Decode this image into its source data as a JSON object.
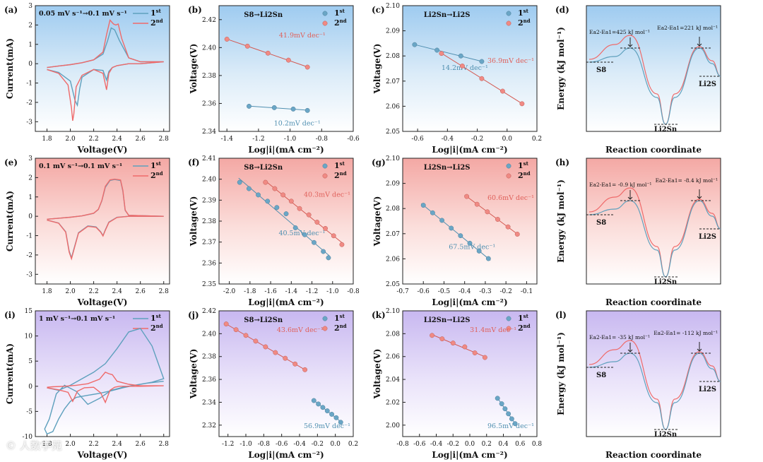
{
  "colors": {
    "first": "#5ea0bd",
    "second": "#ef6a6a",
    "mark1": "#6aa6c6",
    "mark2": "#f08a84"
  },
  "watermark": "© 人数学苑",
  "chart_data": [
    {
      "id": "a",
      "type": "line",
      "label": "(a)",
      "title": "0.05 mV s⁻¹→0.1 mV s⁻¹",
      "xlabel": "Voltage(V)",
      "ylabel": "Current(mA)",
      "xlim": [
        1.7,
        2.85
      ],
      "ylim": [
        -3.5,
        3
      ],
      "xticks": [
        1.8,
        2.0,
        2.2,
        2.4,
        2.6,
        2.8
      ],
      "yticks": [
        -3,
        -2,
        -1,
        0,
        1,
        2,
        3
      ],
      "bg": "blue",
      "legend": [
        "1st",
        "2nd"
      ],
      "series": [
        {
          "name": "1st",
          "x": [
            1.8,
            1.9,
            2.0,
            2.04,
            2.06,
            2.08,
            2.1,
            2.2,
            2.28,
            2.31,
            2.33,
            2.36,
            2.4,
            2.5,
            2.6,
            2.8,
            2.6,
            2.5,
            2.42,
            2.38,
            2.35,
            2.32,
            2.28,
            2.2,
            2.1,
            2.0,
            1.9,
            1.8
          ],
          "y": [
            -0.3,
            -0.45,
            -0.9,
            -1.9,
            -2.15,
            -1.3,
            -0.7,
            -0.3,
            -0.35,
            -0.85,
            -0.4,
            -0.2,
            -0.1,
            0,
            0,
            0.1,
            0.1,
            0.3,
            1.2,
            1.75,
            1.85,
            1.2,
            0.5,
            0.2,
            0.05,
            -0.05,
            -0.12,
            -0.2
          ]
        },
        {
          "name": "2nd",
          "x": [
            1.8,
            1.9,
            1.98,
            2.01,
            2.02,
            2.03,
            2.05,
            2.1,
            2.2,
            2.28,
            2.31,
            2.33,
            2.36,
            2.4,
            2.5,
            2.6,
            2.8,
            2.6,
            2.5,
            2.44,
            2.41,
            2.39,
            2.37,
            2.34,
            2.31,
            2.28,
            2.2,
            2.1,
            2.0,
            1.9,
            1.8
          ],
          "y": [
            -0.3,
            -0.5,
            -1.1,
            -2.3,
            -2.95,
            -2.6,
            -1.2,
            -0.6,
            -0.3,
            -0.5,
            -1.35,
            -0.5,
            -0.2,
            -0.1,
            0,
            0,
            0.1,
            0.1,
            0.3,
            1.3,
            2.05,
            2.0,
            2.05,
            2.25,
            1.5,
            0.6,
            0.2,
            0.05,
            -0.05,
            -0.12,
            -0.2
          ]
        }
      ]
    },
    {
      "id": "b",
      "type": "scatter",
      "label": "(b)",
      "title": "S8→Li2Sn",
      "xlabel": "Log|i|(mA cm⁻²)",
      "ylabel": "Voltage(V)",
      "xlim": [
        -1.45,
        -0.6
      ],
      "ylim": [
        2.34,
        2.43
      ],
      "xticks": [
        -1.4,
        -1.2,
        -1.0,
        -0.8,
        -0.6
      ],
      "yticks": [
        2.34,
        2.36,
        2.38,
        2.4,
        2.42
      ],
      "bg": "blue",
      "legend": [
        "1st",
        "2nd"
      ],
      "series": [
        {
          "name": "1st",
          "x": [
            -1.26,
            -1.1,
            -0.98,
            -0.89
          ],
          "y": [
            2.358,
            2.357,
            2.356,
            2.355
          ],
          "annotation": "10.2mV dec⁻¹"
        },
        {
          "name": "2nd",
          "x": [
            -1.4,
            -1.27,
            -1.14,
            -1.01,
            -0.89
          ],
          "y": [
            2.406,
            2.401,
            2.396,
            2.391,
            2.386
          ],
          "annotation": "41.9mV dec⁻¹"
        }
      ]
    },
    {
      "id": "c",
      "type": "scatter",
      "label": "(c)",
      "title": "Li2Sn→Li2S",
      "xlabel": "Log|i|(mA cm⁻²)",
      "ylabel": "Voltage(V)",
      "xlim": [
        -0.7,
        0.2
      ],
      "ylim": [
        2.05,
        2.1
      ],
      "xticks": [
        -0.6,
        -0.4,
        -0.2,
        0.0,
        0.2
      ],
      "yticks": [
        2.05,
        2.06,
        2.07,
        2.08,
        2.09,
        2.1
      ],
      "bg": "blue",
      "legend": [
        "1st",
        "2nd"
      ],
      "series": [
        {
          "name": "1st",
          "x": [
            -0.62,
            -0.47,
            -0.31,
            -0.17
          ],
          "y": [
            2.0845,
            2.0823,
            2.08,
            2.0778
          ],
          "annotation": "14.2mV dec⁻¹"
        },
        {
          "name": "2nd",
          "x": [
            -0.44,
            -0.3,
            -0.17,
            -0.03,
            0.1
          ],
          "y": [
            2.081,
            2.076,
            2.071,
            2.066,
            2.061
          ],
          "annotation": "36.9mV dec⁻¹"
        }
      ]
    },
    {
      "id": "d",
      "type": "energy",
      "label": "(d)",
      "xlabel": "Reaction coordinate",
      "ylabel": "Energy (kJ mol⁻¹)",
      "bg": "blue",
      "labels": [
        "S8",
        "Li2Sn",
        "Li2S"
      ],
      "annotations": [
        "Ea2-Ea1=425 kJ mol⁻¹",
        "Ea2-Ea1=221 kJ mol⁻¹"
      ]
    },
    {
      "id": "e",
      "type": "line",
      "label": "(e)",
      "title": "0.1 mV s⁻¹→0.1 mV s⁻¹",
      "xlabel": "Voltage(V)",
      "ylabel": "Current(mA)",
      "xlim": [
        1.7,
        2.85
      ],
      "ylim": [
        -3.5,
        3
      ],
      "xticks": [
        1.8,
        2.0,
        2.2,
        2.4,
        2.6,
        2.8
      ],
      "yticks": [
        -3,
        -2,
        -1,
        0,
        1,
        2,
        3
      ],
      "bg": "red",
      "legend": [
        "1st",
        "2nd"
      ],
      "series": [
        {
          "name": "1st",
          "x": [
            1.8,
            1.9,
            1.96,
            1.99,
            2.01,
            2.03,
            2.07,
            2.15,
            2.22,
            2.26,
            2.28,
            2.3,
            2.33,
            2.4,
            2.5,
            2.8,
            2.5,
            2.47,
            2.45,
            2.43,
            2.38,
            2.34,
            2.3,
            2.27,
            2.24,
            2.2,
            2.1,
            2.0,
            1.9,
            1.8
          ],
          "y": [
            -0.2,
            -0.35,
            -0.8,
            -1.8,
            -2.15,
            -1.7,
            -0.85,
            -0.5,
            -0.55,
            -0.8,
            -1.0,
            -0.7,
            -0.3,
            -0.05,
            0,
            0,
            0.05,
            0.3,
            1.3,
            1.85,
            1.9,
            1.85,
            1.5,
            0.8,
            0.35,
            0.15,
            0.02,
            -0.05,
            -0.1,
            -0.15
          ]
        },
        {
          "name": "2nd",
          "x": [
            1.8,
            1.9,
            1.96,
            1.99,
            2.01,
            2.03,
            2.07,
            2.15,
            2.22,
            2.26,
            2.28,
            2.3,
            2.33,
            2.4,
            2.5,
            2.8,
            2.5,
            2.47,
            2.45,
            2.43,
            2.38,
            2.34,
            2.3,
            2.27,
            2.24,
            2.2,
            2.1,
            2.0,
            1.9,
            1.8
          ],
          "y": [
            -0.2,
            -0.36,
            -0.82,
            -1.85,
            -2.2,
            -1.75,
            -0.87,
            -0.52,
            -0.57,
            -0.82,
            -1.02,
            -0.72,
            -0.32,
            -0.06,
            0,
            0,
            0.05,
            0.32,
            1.35,
            1.88,
            1.92,
            1.88,
            1.55,
            0.82,
            0.36,
            0.16,
            0.02,
            -0.05,
            -0.1,
            -0.15
          ]
        }
      ]
    },
    {
      "id": "f",
      "type": "scatter",
      "label": "(f)",
      "title": "S8→Li2Sn",
      "xlabel": "Log|i|(mA cm⁻²)",
      "ylabel": "Voltage(V)",
      "xlim": [
        -2.1,
        -0.8
      ],
      "ylim": [
        2.35,
        2.41
      ],
      "xticks": [
        -2.0,
        -1.8,
        -1.6,
        -1.4,
        -1.2,
        -1.0,
        -0.8
      ],
      "yticks": [
        2.35,
        2.36,
        2.37,
        2.38,
        2.39,
        2.4,
        2.41
      ],
      "bg": "red",
      "legend": [
        "1st",
        "2nd"
      ],
      "series": [
        {
          "name": "1st",
          "x": [
            -1.9,
            -1.81,
            -1.72,
            -1.63,
            -1.54,
            -1.45,
            -1.36,
            -1.27,
            -1.18,
            -1.09,
            -1.04
          ],
          "y": [
            2.3985,
            2.3955,
            2.3925,
            2.3895,
            2.3865,
            2.3835,
            2.3768,
            2.3735,
            2.3698,
            2.3655,
            2.3625
          ],
          "annotation": "40.5mV dec⁻¹"
        },
        {
          "name": "2nd",
          "x": [
            -1.65,
            -1.56,
            -1.48,
            -1.4,
            -1.32,
            -1.23,
            -1.15,
            -1.07,
            -0.99,
            -0.91
          ],
          "y": [
            2.3985,
            2.3955,
            2.3925,
            2.3895,
            2.386,
            2.383,
            2.3795,
            2.3765,
            2.373,
            2.3688
          ],
          "annotation": "40.3mV dec⁻¹"
        }
      ]
    },
    {
      "id": "g",
      "type": "scatter",
      "label": "(g)",
      "title": "Li2Sn→Li2S",
      "xlabel": "Log|i|(mA cm⁻²)",
      "ylabel": "Voltage(V)",
      "xlim": [
        -0.7,
        -0.05
      ],
      "ylim": [
        2.05,
        2.1
      ],
      "xticks": [
        -0.7,
        -0.6,
        -0.5,
        -0.4,
        -0.3,
        -0.2,
        -0.1
      ],
      "yticks": [
        2.05,
        2.06,
        2.07,
        2.08,
        2.09,
        2.1
      ],
      "bg": "red",
      "legend": [
        "1st",
        "2nd"
      ],
      "series": [
        {
          "name": "1st",
          "x": [
            -0.6,
            -0.555,
            -0.51,
            -0.465,
            -0.42,
            -0.375,
            -0.33,
            -0.285
          ],
          "y": [
            2.0813,
            2.0783,
            2.0753,
            2.0722,
            2.0692,
            2.0662,
            2.0631,
            2.0601
          ],
          "annotation": "67.5mV dec⁻¹"
        },
        {
          "name": "2nd",
          "x": [
            -0.39,
            -0.34,
            -0.29,
            -0.24,
            -0.19,
            -0.145
          ],
          "y": [
            2.0848,
            2.0817,
            2.0787,
            2.0757,
            2.0727,
            2.0698
          ],
          "annotation": "60.6mV dec⁻¹"
        }
      ]
    },
    {
      "id": "h",
      "type": "energy",
      "label": "(h)",
      "xlabel": "Reaction coordinate",
      "ylabel": "Energy (kJ mol⁻¹)",
      "bg": "red",
      "labels": [
        "S8",
        "Li2Sn",
        "Li2S"
      ],
      "annotations": [
        "Ea2-Ea1= -0.9 kJ mol⁻¹",
        "Ea2-Ea1= -8.4 kJ mol⁻¹"
      ]
    },
    {
      "id": "i",
      "type": "line",
      "label": "(i)",
      "title": "1 mV s⁻¹→0.1 mV s⁻¹",
      "xlabel": "Voltage(V)",
      "ylabel": "Current(mA)",
      "xlim": [
        1.7,
        2.85
      ],
      "ylim": [
        -10,
        15
      ],
      "xticks": [
        1.8,
        2.0,
        2.2,
        2.4,
        2.6,
        2.8
      ],
      "yticks": [
        -10,
        -5,
        0,
        5,
        10,
        15
      ],
      "bg": "purple",
      "legend": [
        "1st",
        "2nd"
      ],
      "series": [
        {
          "name": "1st",
          "x": [
            1.8,
            1.9,
            2.0,
            2.1,
            2.2,
            2.3,
            2.4,
            2.5,
            2.6,
            2.7,
            2.8,
            2.7,
            2.6,
            2.52,
            2.45,
            2.35,
            2.25,
            2.15,
            2.05,
            1.95,
            1.88,
            1.82,
            1.78,
            1.8,
            1.85,
            1.9,
            1.95,
            2.0,
            2.05,
            2.15,
            2.25,
            2.35,
            2.45,
            2.55,
            2.65,
            2.8
          ],
          "y": [
            -0.3,
            -0.8,
            0.2,
            1.5,
            2.8,
            4.5,
            7.5,
            10.8,
            11.5,
            8,
            1.5,
            0.8,
            0.4,
            0.1,
            -0.2,
            -0.8,
            -2.4,
            -3.6,
            -1.0,
            0.2,
            -1.5,
            -6.5,
            -8.5,
            -9.5,
            -9.0,
            -6.5,
            -4.5,
            -3.0,
            -2.2,
            -1.8,
            -1.4,
            -0.9,
            -0.3,
            0.2,
            0.6,
            1.0
          ]
        },
        {
          "name": "2nd",
          "x": [
            1.8,
            1.9,
            1.98,
            2.02,
            2.06,
            2.12,
            2.2,
            2.26,
            2.3,
            2.34,
            2.38,
            2.42,
            2.5,
            2.6,
            2.8,
            2.6,
            2.5,
            2.4,
            2.36,
            2.33,
            2.3,
            2.25,
            2.15,
            2.05,
            1.95,
            1.85,
            1.8
          ],
          "y": [
            -0.3,
            -0.7,
            -1.2,
            -3.0,
            -1.0,
            -0.3,
            -0.2,
            -1.3,
            -3.2,
            -0.8,
            -0.2,
            0,
            0,
            0,
            0.1,
            0.1,
            0.4,
            1.0,
            2.3,
            2.5,
            2.8,
            1.4,
            0.5,
            0.2,
            0,
            -0.1,
            -0.2
          ]
        }
      ]
    },
    {
      "id": "j",
      "type": "scatter",
      "label": "(j)",
      "title": "S8→Li2Sn",
      "xlabel": "Log|i|(mA cm⁻²)",
      "ylabel": "Voltage(V)",
      "xlim": [
        -1.3,
        0.2
      ],
      "ylim": [
        2.31,
        2.42
      ],
      "xticks": [
        -1.2,
        -1.0,
        -0.8,
        -0.6,
        -0.4,
        -0.2,
        0.0,
        0.2
      ],
      "yticks": [
        2.32,
        2.34,
        2.36,
        2.38,
        2.4,
        2.42
      ],
      "bg": "purple",
      "legend": [
        "1st",
        "2nd"
      ],
      "series": [
        {
          "name": "1st",
          "x": [
            -0.24,
            -0.19,
            -0.14,
            -0.09,
            -0.04,
            0.01,
            0.06
          ],
          "y": [
            2.3415,
            2.3385,
            2.3355,
            2.3325,
            2.3295,
            2.3265,
            2.3225
          ],
          "annotation": "56.9mV dec⁻¹"
        },
        {
          "name": "2nd",
          "x": [
            -1.22,
            -1.11,
            -1.0,
            -0.89,
            -0.78,
            -0.67,
            -0.56,
            -0.45,
            -0.34
          ],
          "y": [
            2.4085,
            2.4035,
            2.3985,
            2.3935,
            2.3885,
            2.3835,
            2.3785,
            2.3735,
            2.3685
          ],
          "annotation": "43.6mV dec⁻¹"
        }
      ]
    },
    {
      "id": "k",
      "type": "scatter",
      "label": "(k)",
      "title": "Li2Sn→Li2S",
      "xlabel": "Log|i|(mA cm⁻²)",
      "ylabel": "Voltage(V)",
      "xlim": [
        -0.8,
        0.8
      ],
      "ylim": [
        1.99,
        2.1
      ],
      "xticks": [
        -0.8,
        -0.6,
        -0.4,
        -0.2,
        0.0,
        0.2,
        0.4,
        0.6,
        0.8
      ],
      "yticks": [
        2.0,
        2.02,
        2.04,
        2.06,
        2.08,
        2.1
      ],
      "bg": "purple",
      "legend": [
        "1st",
        "2nd"
      ],
      "series": [
        {
          "name": "1st",
          "x": [
            0.33,
            0.38,
            0.42,
            0.46,
            0.5,
            0.54
          ],
          "y": [
            2.0235,
            2.0187,
            2.0143,
            2.0099,
            2.0055,
            2.0013
          ],
          "annotation": "96.5mV dec⁻¹"
        },
        {
          "name": "2nd",
          "x": [
            -0.45,
            -0.33,
            -0.2,
            -0.06,
            0.06,
            0.18
          ],
          "y": [
            2.0785,
            2.0755,
            2.0718,
            2.0685,
            2.0632,
            2.0592
          ],
          "annotation": "31.4mV dec⁻¹"
        }
      ]
    },
    {
      "id": "l",
      "type": "energy",
      "label": "(l)",
      "xlabel": "Reaction coordinate",
      "ylabel": "Energy (kJ mol⁻¹)",
      "bg": "purple",
      "labels": [
        "S8",
        "Li2Sn",
        "Li2S"
      ],
      "annotations": [
        "Ea2-Ea1= -35 kJ mol⁻¹",
        "Ea2-Ea1= -112 kJ mol⁻¹"
      ]
    }
  ]
}
